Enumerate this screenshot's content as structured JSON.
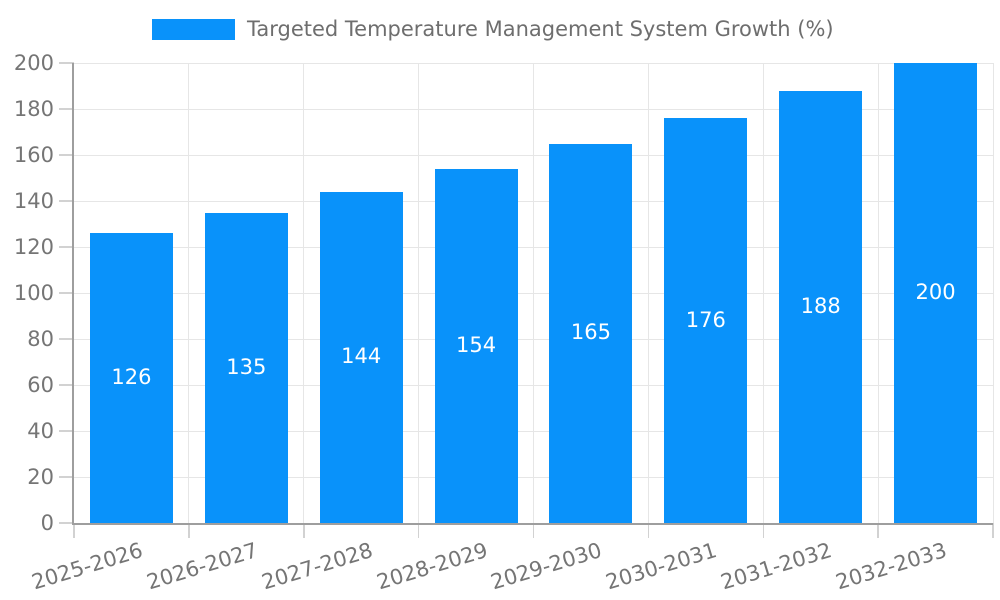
{
  "legend": {
    "label": "Targeted Temperature Management System Growth (%)"
  },
  "chart_data": {
    "type": "bar",
    "categories": [
      "2025-2026",
      "2026-2027",
      "2027-2028",
      "2028-2029",
      "2029-2030",
      "2030-2031",
      "2031-2032",
      "2032-2033"
    ],
    "values": [
      126,
      135,
      144,
      154,
      165,
      176,
      188,
      200
    ],
    "title": "Targeted Temperature Management System Growth (%)",
    "xlabel": "",
    "ylabel": "",
    "ylim": [
      0,
      200
    ],
    "ytick_step": 20,
    "yticks": [
      0,
      20,
      40,
      60,
      80,
      100,
      120,
      140,
      160,
      180,
      200
    ],
    "grid": true,
    "legend_position": "top",
    "bar_value_labels_inside": true,
    "x_label_rotation_deg": -17
  },
  "colors": {
    "bar": "#0992fa",
    "bar_label": "#ffffff",
    "grid": "#e6e6e6",
    "tick": "#d2d2d2",
    "axis": "#9e9e9e",
    "tick_text": "#757575",
    "title_text": "#6e6e6e",
    "background": "#ffffff"
  }
}
